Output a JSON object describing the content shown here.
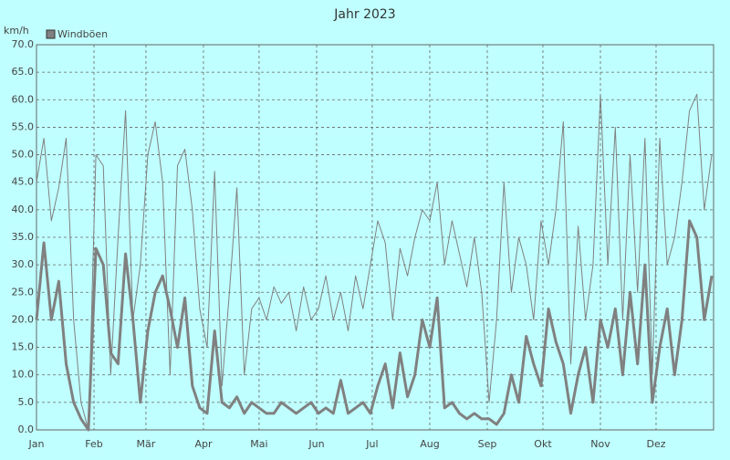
{
  "chart_data": {
    "type": "line",
    "title": "Jahr 2023",
    "y_label": "km/h",
    "x": [
      1,
      5,
      9,
      13,
      17,
      21,
      25,
      29,
      33,
      37,
      41,
      45,
      49,
      53,
      57,
      61,
      65,
      69,
      73,
      77,
      81,
      85,
      89,
      93,
      97,
      101,
      105,
      109,
      113,
      117,
      121,
      125,
      129,
      133,
      137,
      141,
      145,
      149,
      153,
      157,
      161,
      165,
      169,
      173,
      177,
      181,
      185,
      189,
      193,
      197,
      201,
      205,
      209,
      213,
      217,
      221,
      225,
      229,
      233,
      237,
      241,
      245,
      249,
      253,
      257,
      261,
      265,
      269,
      273,
      277,
      281,
      285,
      289,
      293,
      297,
      301,
      305,
      309,
      313,
      317,
      321,
      325,
      329,
      333,
      337,
      341,
      345,
      349,
      353,
      357,
      361,
      365
    ],
    "series": [
      {
        "name": "Windböen",
        "color": "#808080",
        "width": 1,
        "values": [
          45,
          53,
          38,
          44,
          53,
          20,
          5,
          0,
          50,
          48,
          10,
          35,
          58,
          20,
          30,
          50,
          56,
          45,
          10,
          48,
          51,
          40,
          22,
          15,
          47,
          8,
          25,
          44,
          10,
          22,
          24,
          20,
          26,
          23,
          25,
          18,
          26,
          20,
          22,
          28,
          20,
          25,
          18,
          28,
          22,
          30,
          38,
          34,
          20,
          33,
          28,
          35,
          40,
          38,
          45,
          30,
          38,
          32,
          26,
          35,
          25,
          5,
          20,
          45,
          25,
          35,
          30,
          20,
          38,
          30,
          40,
          56,
          12,
          37,
          20,
          30,
          61,
          30,
          55,
          20,
          50,
          25,
          53,
          10,
          53,
          30,
          35,
          45,
          58,
          61,
          40,
          50
        ]
      },
      {
        "color": "#808080",
        "width": 3,
        "values": [
          20,
          34,
          20,
          27,
          12,
          5,
          2,
          0,
          33,
          30,
          14,
          12,
          32,
          20,
          5,
          18,
          25,
          28,
          22,
          15,
          24,
          8,
          4,
          3,
          18,
          5,
          4,
          6,
          3,
          5,
          4,
          3,
          3,
          5,
          4,
          3,
          4,
          5,
          3,
          4,
          3,
          9,
          3,
          4,
          5,
          3,
          8,
          12,
          4,
          14,
          6,
          10,
          20,
          15,
          24,
          4,
          5,
          3,
          2,
          3,
          2,
          2,
          1,
          3,
          10,
          5,
          17,
          12,
          8,
          22,
          16,
          12,
          3,
          10,
          15,
          5,
          20,
          15,
          22,
          10,
          25,
          12,
          30,
          5,
          15,
          22,
          10,
          20,
          38,
          35,
          20,
          28
        ]
      }
    ],
    "xlim": [
      1,
      366
    ],
    "xticks": [
      {
        "value": 1,
        "label": "Jan"
      },
      {
        "value": 32,
        "label": "Feb"
      },
      {
        "value": 60,
        "label": "Mär"
      },
      {
        "value": 91,
        "label": "Apr"
      },
      {
        "value": 121,
        "label": "Mai"
      },
      {
        "value": 152,
        "label": "Jun"
      },
      {
        "value": 182,
        "label": "Jul"
      },
      {
        "value": 213,
        "label": "Aug"
      },
      {
        "value": 244,
        "label": "Sep"
      },
      {
        "value": 274,
        "label": "Okt"
      },
      {
        "value": 305,
        "label": "Nov"
      },
      {
        "value": 335,
        "label": "Dez"
      }
    ],
    "ylim": [
      0,
      70
    ],
    "yticks": [
      {
        "value": 0,
        "label": "0.0"
      },
      {
        "value": 5,
        "label": "5.0"
      },
      {
        "value": 10,
        "label": "10.0"
      },
      {
        "value": 15,
        "label": "15.0"
      },
      {
        "value": 20,
        "label": "20.0"
      },
      {
        "value": 25,
        "label": "25.0"
      },
      {
        "value": 30,
        "label": "30.0"
      },
      {
        "value": 35,
        "label": "35.0"
      },
      {
        "value": 40,
        "label": "40.0"
      },
      {
        "value": 45,
        "label": "45.0"
      },
      {
        "value": 50,
        "label": "50.0"
      },
      {
        "value": 55,
        "label": "55.0"
      },
      {
        "value": 60,
        "label": "60.0"
      },
      {
        "value": 65,
        "label": "65.0"
      },
      {
        "value": 70,
        "label": "70.0"
      }
    ],
    "grid": true,
    "background": "#c0ffff"
  }
}
